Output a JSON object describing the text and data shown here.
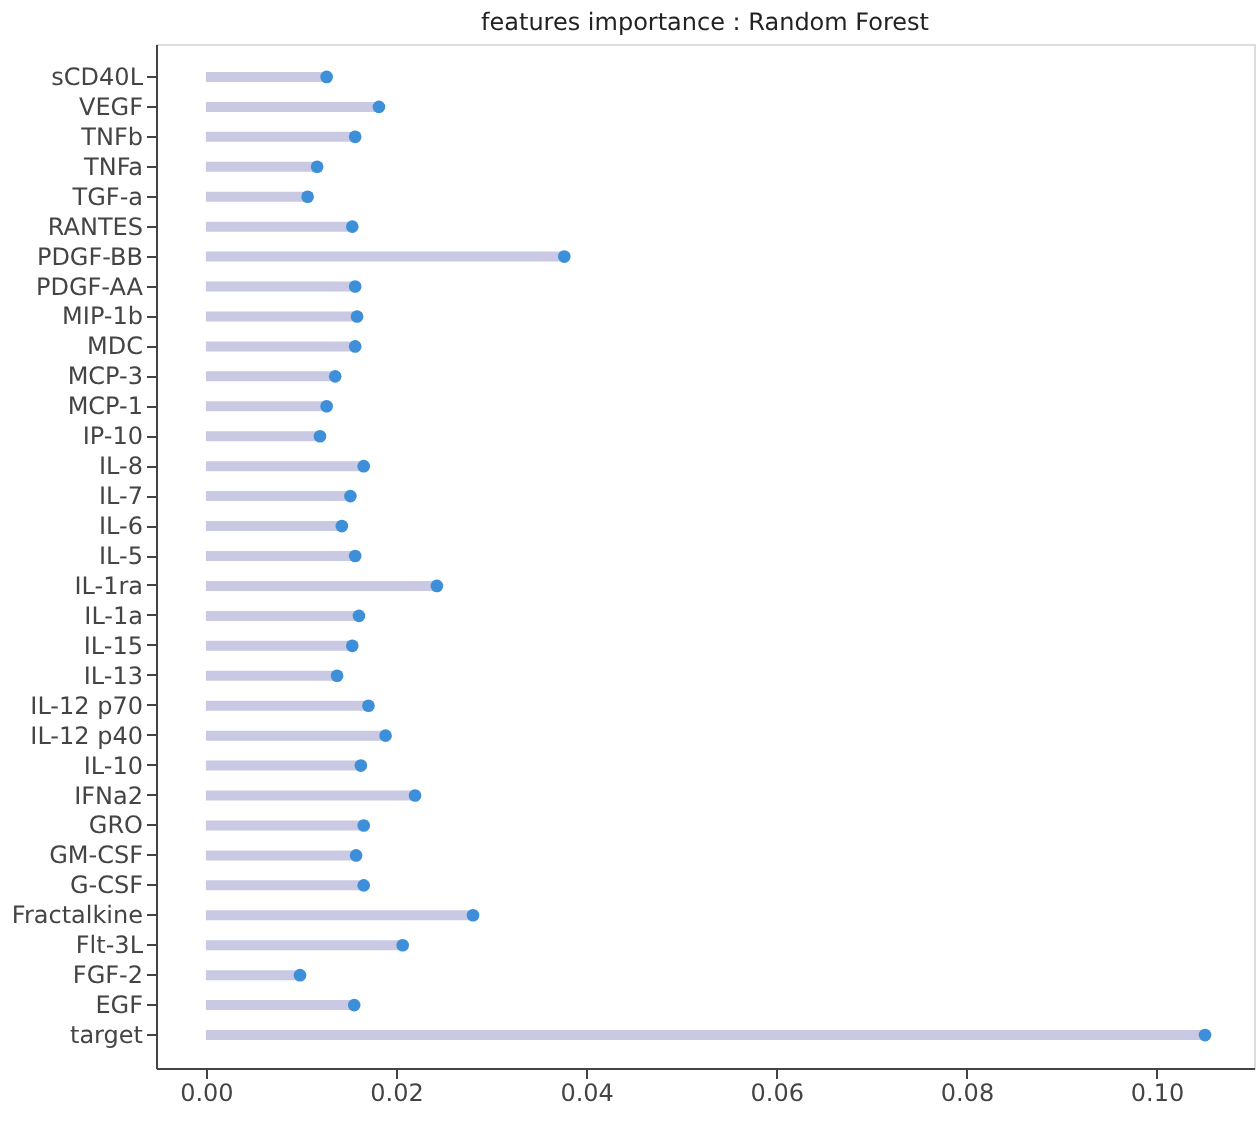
{
  "chart_data": {
    "type": "lollipop",
    "orientation": "horizontal",
    "title": "features importance : Random Forest",
    "categories": [
      "sCD40L",
      "VEGF",
      "TNFb",
      "TNFa",
      "TGF-a",
      "RANTES",
      "PDGF-BB",
      "PDGF-AA",
      "MIP-1b",
      "MDC",
      "MCP-3",
      "MCP-1",
      "IP-10",
      "IL-8",
      "IL-7",
      "IL-6",
      "IL-5",
      "IL-1ra",
      "IL-1a",
      "IL-15",
      "IL-13",
      "IL-12 p70",
      "IL-12 p40",
      "IL-10",
      "IFNa2",
      "GRO",
      "GM-CSF",
      "G-CSF",
      "Fractalkine",
      "Flt-3L",
      "FGF-2",
      "EGF",
      "target"
    ],
    "values": [
      0.0127,
      0.0182,
      0.0157,
      0.0117,
      0.0107,
      0.0154,
      0.0377,
      0.0157,
      0.0159,
      0.0157,
      0.0136,
      0.0127,
      0.012,
      0.0166,
      0.0152,
      0.0143,
      0.0157,
      0.0243,
      0.0161,
      0.0154,
      0.0138,
      0.0171,
      0.0189,
      0.0163,
      0.022,
      0.0166,
      0.0158,
      0.0166,
      0.0281,
      0.0207,
      0.0099,
      0.0156,
      0.1051
    ],
    "color": "#3d8fd9",
    "xlim": [
      -0.00525,
      0.11025
    ],
    "xticks": [
      {
        "value": 0,
        "label": "0.00"
      },
      {
        "value": 0.02,
        "label": "0.02"
      },
      {
        "value": 0.04,
        "label": "0.04"
      },
      {
        "value": 0.06,
        "label": "0.06"
      },
      {
        "value": 0.08,
        "label": "0.08"
      },
      {
        "value": 0.1,
        "label": "0.10"
      }
    ],
    "grid": false,
    "marker": "circle"
  }
}
